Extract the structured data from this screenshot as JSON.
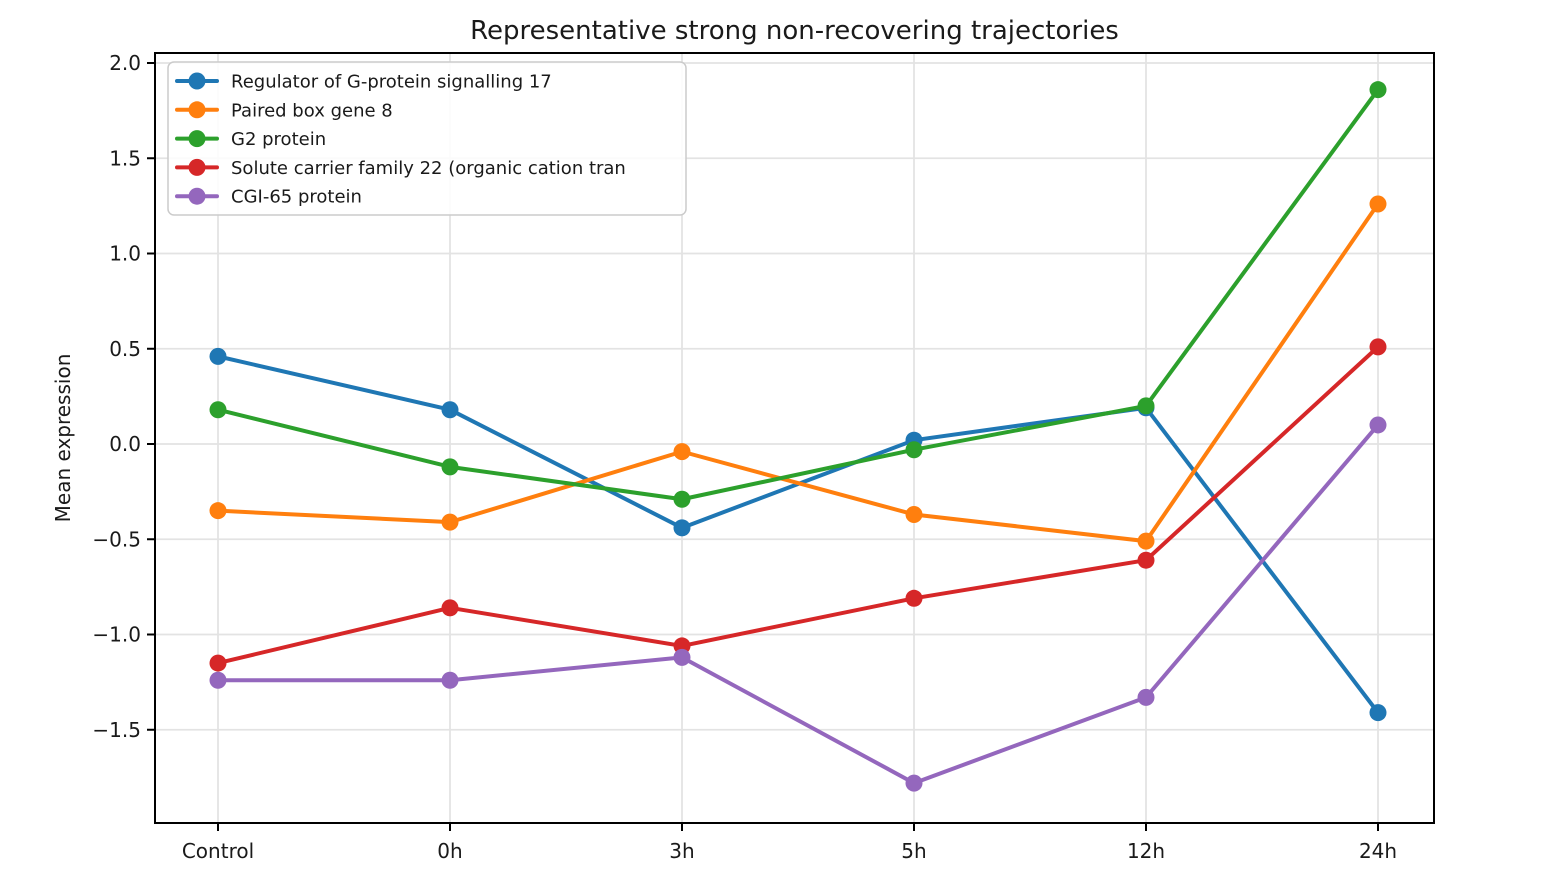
{
  "chart_data": {
    "type": "line",
    "title": "Representative strong non-recovering trajectories",
    "xlabel": "",
    "ylabel": "Mean expression",
    "categories": [
      "Control",
      "0h",
      "3h",
      "5h",
      "12h",
      "24h"
    ],
    "series": [
      {
        "name": "Regulator of G-protein signalling 17",
        "color": "#1f77b4",
        "values": [
          0.46,
          0.18,
          -0.44,
          0.02,
          0.19,
          -1.41
        ]
      },
      {
        "name": "Paired box gene 8",
        "color": "#ff7f0e",
        "values": [
          -0.35,
          -0.41,
          -0.04,
          -0.37,
          -0.51,
          1.26
        ]
      },
      {
        "name": "G2 protein",
        "color": "#2ca02c",
        "values": [
          0.18,
          -0.12,
          -0.29,
          -0.03,
          0.2,
          1.86
        ]
      },
      {
        "name": "Solute carrier family 22 (organic cation tran",
        "color": "#d62728",
        "values": [
          -1.15,
          -0.86,
          -1.06,
          -0.81,
          -0.61,
          0.51
        ]
      },
      {
        "name": "CGI-65 protein",
        "color": "#9467bd",
        "values": [
          -1.24,
          -1.24,
          -1.12,
          -1.78,
          -1.33,
          0.1
        ]
      }
    ],
    "yticks": [
      2.0,
      1.5,
      1.0,
      0.5,
      0.0,
      -0.5,
      -1.0,
      -1.5
    ],
    "ytick_labels": [
      "2.0",
      "1.5",
      "1.0",
      "0.5",
      "0.0",
      "−0.5",
      "−1.0",
      "−1.5"
    ],
    "ylim": [
      -1.99,
      2.05
    ],
    "grid": true,
    "legend_position": "upper left",
    "colors": {
      "grid": "#e3e3e3",
      "spine": "#000000",
      "text": "#1a1a1a",
      "legend_border": "#cbcbcb",
      "legend_bg": "#ffffff"
    }
  }
}
